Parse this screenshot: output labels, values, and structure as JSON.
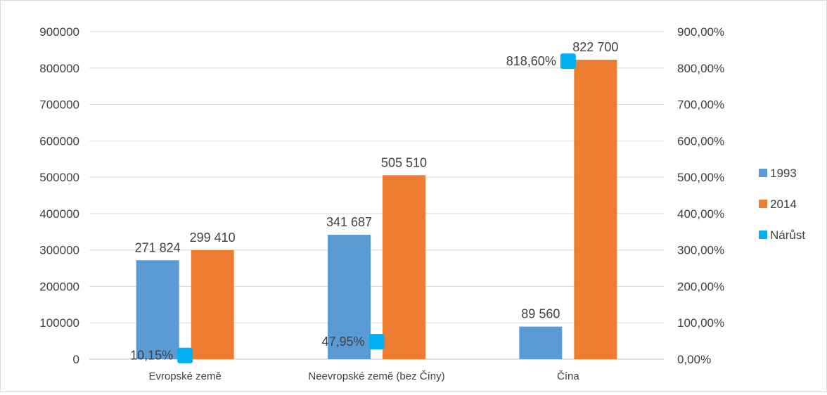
{
  "chart_data": {
    "type": "bar",
    "title": "",
    "xlabel": "",
    "ylabel": "",
    "categories": [
      "Evropské země",
      "Neevropské země (bez Číny)",
      "Čína"
    ],
    "series": [
      {
        "name": "1993",
        "axis": "left",
        "kind": "bar",
        "color": "#5b9bd5",
        "values": [
          271824,
          341687,
          89560
        ],
        "labels": [
          "271 824",
          "341 687",
          "89 560"
        ]
      },
      {
        "name": "2014",
        "axis": "left",
        "kind": "bar",
        "color": "#ed7d31",
        "values": [
          299410,
          505510,
          822700
        ],
        "labels": [
          "299 410",
          "505 510",
          "822 700"
        ]
      },
      {
        "name": "Nárůst",
        "axis": "right",
        "kind": "marker",
        "color": "#00b0f0",
        "values": [
          10.15,
          47.95,
          818.6
        ],
        "labels": [
          "10,15%",
          "47,95%",
          "818,60%"
        ]
      }
    ],
    "ylim": [
      0,
      900000
    ],
    "y2lim": [
      0,
      900
    ],
    "left_ticks": [
      "0",
      "100000",
      "200000",
      "300000",
      "400000",
      "500000",
      "600000",
      "700000",
      "800000",
      "900000"
    ],
    "right_ticks": [
      "0,00%",
      "100,00%",
      "200,00%",
      "300,00%",
      "400,00%",
      "500,00%",
      "600,00%",
      "700,00%",
      "800,00%",
      "900,00%"
    ],
    "grid": true,
    "legend_position": "right"
  }
}
